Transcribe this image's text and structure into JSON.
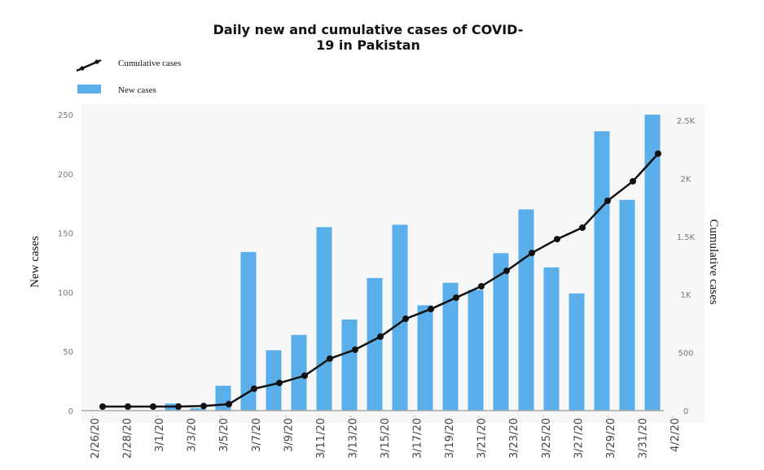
{
  "chart_data": {
    "type": "bar+line",
    "title": "Daily new and cumulative cases of COVID-19 in Pakistan",
    "title_lines": [
      "Daily new and cumulative cases of COVID-",
      "19 in Pakistan"
    ],
    "legend": {
      "placement": "top-left",
      "entries": [
        {
          "label": "Cumulative cases",
          "type": "line",
          "color": "#111111"
        },
        {
          "label": "New cases",
          "type": "bar",
          "color": "#5aaeea"
        }
      ]
    },
    "ylabel_left": "New cases",
    "ylabel_right": "Cumulative cases",
    "ylim_left": [
      0,
      250
    ],
    "ylim_right": [
      0,
      2500
    ],
    "yticks_left": [
      {
        "value": 0,
        "label": "0"
      },
      {
        "value": 50,
        "label": "50"
      },
      {
        "value": 100,
        "label": "100"
      },
      {
        "value": 150,
        "label": "150"
      },
      {
        "value": 200,
        "label": "200"
      },
      {
        "value": 250,
        "label": "250"
      }
    ],
    "yticks_right": [
      {
        "value": 0,
        "label": "0"
      },
      {
        "value": 500,
        "label": "500"
      },
      {
        "value": 1000,
        "label": "1K"
      },
      {
        "value": 1500,
        "label": "1.5K"
      },
      {
        "value": 2000,
        "label": "2K"
      },
      {
        "value": 2500,
        "label": "2.5K"
      }
    ],
    "xtick_labels": [
      "2/26/20",
      "2/28/20",
      "3/1/20",
      "3/3/20",
      "3/5/20",
      "3/7/20",
      "3/9/20",
      "3/11/20",
      "3/13/20",
      "3/15/20",
      "3/17/20",
      "3/19/20",
      "3/21/20",
      "3/23/20",
      "3/25/20",
      "3/27/20",
      "3/29/20",
      "3/31/20",
      "4/2/20"
    ],
    "grid": false,
    "series": [
      {
        "name": "New cases",
        "type": "bar",
        "color": "#5aaeea",
        "values": [
          0,
          0,
          0,
          6,
          2,
          21,
          134,
          51,
          64,
          155,
          77,
          112,
          157,
          89,
          108,
          102,
          133,
          170,
          121,
          99,
          236,
          178,
          250
        ]
      },
      {
        "name": "Cumulative cases",
        "type": "line",
        "color": "#111111",
        "values": [
          35,
          35,
          35,
          35,
          40,
          56,
          189,
          238,
          301,
          448,
          525,
          637,
          791,
          875,
          973,
          1071,
          1204,
          1358,
          1477,
          1576,
          1807,
          1975,
          2213
        ]
      }
    ]
  }
}
